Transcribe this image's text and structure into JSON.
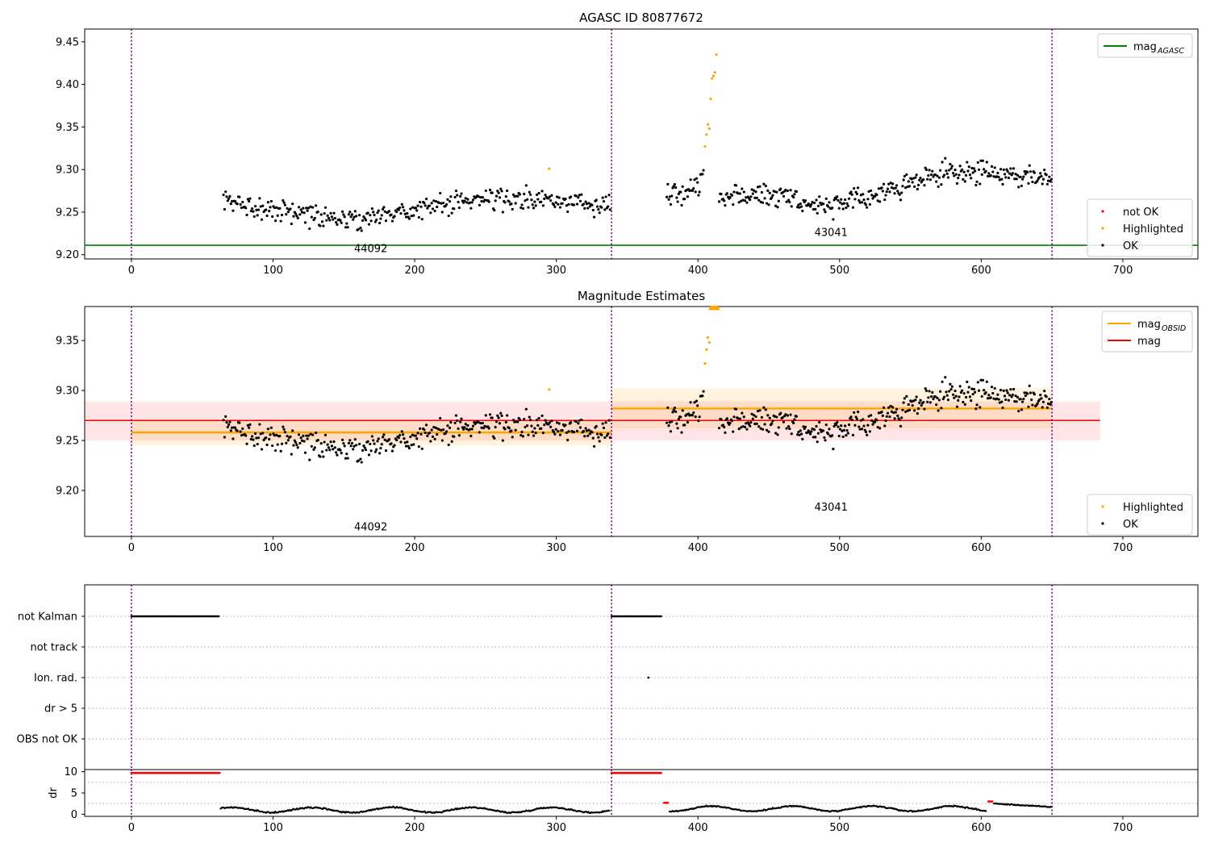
{
  "chart_data": [
    {
      "type": "scatter",
      "title": "AGASC ID 80877672",
      "xlim": [
        -33,
        753
      ],
      "ylim": [
        9.195,
        9.465
      ],
      "xticks": [
        0,
        100,
        200,
        300,
        400,
        500,
        600,
        700
      ],
      "yticks": [
        "9.20",
        "9.25",
        "9.30",
        "9.35",
        "9.40",
        "9.45"
      ],
      "obs_boundaries": [
        0,
        339,
        650
      ],
      "obsids": [
        {
          "label": "44092",
          "x": 169,
          "y": 9.203
        },
        {
          "label": "43041",
          "x": 494,
          "y": 9.222
        }
      ],
      "mag_agasc": 9.211,
      "legend_upper": [
        {
          "label": "mag",
          "subscript": "AGASC",
          "color": "#008000"
        }
      ],
      "legend_lower": [
        {
          "label": "not OK",
          "color": "#ff0000"
        },
        {
          "label": "Highlighted",
          "color": "#ffa500"
        },
        {
          "label": "OK",
          "color": "#000000"
        }
      ],
      "highlighted_points": [
        [
          295,
          9.301
        ],
        [
          405,
          9.327
        ],
        [
          406,
          9.341
        ],
        [
          407,
          9.353
        ],
        [
          408,
          9.348
        ],
        [
          409,
          9.383
        ],
        [
          410,
          9.407
        ],
        [
          411,
          9.41
        ],
        [
          412,
          9.414
        ],
        [
          413,
          9.435
        ]
      ]
    },
    {
      "type": "scatter",
      "title": "Magnitude Estimates",
      "xlim": [
        -33,
        753
      ],
      "ylim": [
        9.154,
        9.384
      ],
      "xticks": [
        0,
        100,
        200,
        300,
        400,
        500,
        600,
        700
      ],
      "yticks": [
        "9.20",
        "9.25",
        "9.30",
        "9.35"
      ],
      "obs_boundaries": [
        0,
        339,
        650
      ],
      "obsids": [
        {
          "label": "44092",
          "x": 169,
          "y": 9.16
        },
        {
          "label": "43041",
          "x": 494,
          "y": 9.18
        }
      ],
      "mag": 9.27,
      "mag_band": [
        9.25,
        9.289
      ],
      "mag_obsid": [
        {
          "x0": 0,
          "x1": 339,
          "value": 9.258,
          "band": [
            9.245,
            9.27
          ]
        },
        {
          "x0": 339,
          "x1": 650,
          "value": 9.282,
          "band": [
            9.262,
            9.302
          ]
        }
      ],
      "legend_upper": [
        {
          "label": "mag",
          "subscript": "OBSID",
          "color": "#ffa500"
        },
        {
          "label": "mag",
          "subscript": "",
          "color": "#ff0000"
        }
      ],
      "legend_lower": [
        {
          "label": "Highlighted",
          "color": "#ffa500"
        },
        {
          "label": "OK",
          "color": "#000000"
        }
      ],
      "highlighted_points": [
        [
          295,
          9.301
        ],
        [
          405,
          9.327
        ],
        [
          406,
          9.341
        ],
        [
          407,
          9.353
        ],
        [
          408,
          9.348
        ]
      ],
      "clipped_cluster": {
        "x": [
          409,
          414
        ],
        "y": 9.382
      }
    },
    {
      "type": "scatter",
      "xlim": [
        -33,
        753
      ],
      "xticks": [
        0,
        100,
        200,
        300,
        400,
        500,
        600,
        700
      ],
      "obs_boundaries": [
        0,
        339,
        650
      ],
      "flag_rows": [
        "not Kalman",
        "not track",
        "Ion. rad.",
        "dr > 5",
        "OBS not OK"
      ],
      "flag_points": [
        {
          "row": "not Kalman",
          "x_start": 0,
          "x_end": 62
        },
        {
          "row": "not Kalman",
          "x_start": 339,
          "x_end": 374
        },
        {
          "row": "Ion. rad.",
          "x": 365
        }
      ],
      "dr_ylabel": "dr",
      "dr_ylim": [
        -0.5,
        10.5
      ],
      "dr_yticks": [
        "0",
        "5",
        "10"
      ],
      "dr_red_segments": [
        {
          "x0": 0,
          "x1": 63,
          "y": 9.7
        },
        {
          "x0": 339,
          "x1": 374,
          "y": 9.7
        },
        {
          "x0": 376,
          "x1": 379,
          "y": 2.7
        },
        {
          "x0": 605,
          "x1": 608,
          "y": 3.0
        }
      ]
    }
  ]
}
